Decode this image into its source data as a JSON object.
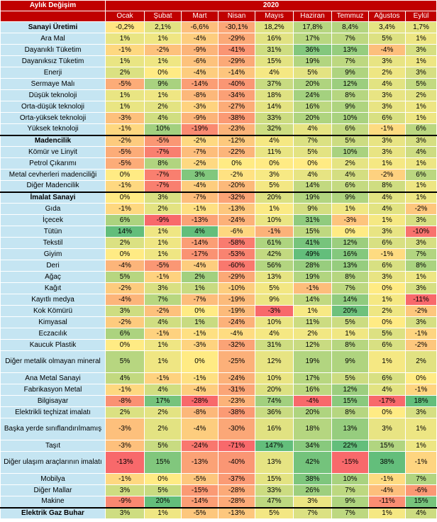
{
  "header": {
    "corner_label": "Aylık Değişim",
    "year": "2020",
    "months": [
      "Ocak",
      "Şubat",
      "Mart",
      "Nisan",
      "Mayıs",
      "Haziran",
      "Temmuz",
      "Ağustos",
      "Eylül"
    ]
  },
  "colors": {
    "header_bg": "#c00000",
    "header_text": "#ffffff",
    "label_bg": "#c5e5f2",
    "scale_red": "#f8696b",
    "scale_yellow": "#ffeb84",
    "scale_green": "#63be7b"
  },
  "rows": [
    {
      "label": "Sanayi Üretimi",
      "bold": true,
      "values": [
        "-0,2%",
        "2,1%",
        "-6,6%",
        "-30,1%",
        "18,2%",
        "17,8%",
        "8,4%",
        "3,4%",
        "1,7%"
      ]
    },
    {
      "label": "Ara Mal",
      "values": [
        "1%",
        "1%",
        "-4%",
        "-29%",
        "16%",
        "17%",
        "7%",
        "5%",
        "1%"
      ]
    },
    {
      "label": "Dayanıklı Tüketim",
      "values": [
        "-1%",
        "-2%",
        "-9%",
        "-41%",
        "31%",
        "36%",
        "13%",
        "-4%",
        "3%"
      ]
    },
    {
      "label": "Dayanıksız Tüketim",
      "values": [
        "1%",
        "1%",
        "-6%",
        "-29%",
        "15%",
        "19%",
        "7%",
        "3%",
        "1%"
      ]
    },
    {
      "label": "Enerji",
      "values": [
        "2%",
        "0%",
        "-4%",
        "-14%",
        "4%",
        "5%",
        "9%",
        "2%",
        "3%"
      ]
    },
    {
      "label": "Sermaye Malı",
      "values": [
        "-5%",
        "9%",
        "-14%",
        "-40%",
        "37%",
        "20%",
        "12%",
        "4%",
        "5%"
      ]
    },
    {
      "label": "Düşük teknoloji",
      "values": [
        "1%",
        "1%",
        "-8%",
        "-34%",
        "18%",
        "24%",
        "8%",
        "3%",
        "2%"
      ]
    },
    {
      "label": "Orta-düşük teknoloji",
      "values": [
        "1%",
        "2%",
        "-3%",
        "-27%",
        "14%",
        "16%",
        "9%",
        "3%",
        "1%"
      ]
    },
    {
      "label": "Orta-yüksek teknoloji",
      "values": [
        "-3%",
        "4%",
        "-9%",
        "-38%",
        "33%",
        "20%",
        "10%",
        "6%",
        "1%"
      ]
    },
    {
      "label": "Yüksek teknoloji",
      "values": [
        "-1%",
        "10%",
        "-19%",
        "-23%",
        "32%",
        "4%",
        "6%",
        "-1%",
        "6%"
      ]
    },
    {
      "label": "Madencilik",
      "bold": true,
      "section": true,
      "values": [
        "-2%",
        "-5%",
        "-2%",
        "-12%",
        "4%",
        "7%",
        "5%",
        "3%",
        "3%"
      ]
    },
    {
      "label": "Kömür ve Linyit",
      "values": [
        "-5%",
        "-7%",
        "-7%",
        "-22%",
        "11%",
        "5%",
        "10%",
        "3%",
        "4%"
      ]
    },
    {
      "label": "Petrol Çıkarımı",
      "values": [
        "-5%",
        "8%",
        "-2%",
        "0%",
        "0%",
        "0%",
        "2%",
        "1%",
        "1%"
      ]
    },
    {
      "label": "Metal cevherleri madenciliği",
      "values": [
        "0%",
        "-7%",
        "3%",
        "-2%",
        "3%",
        "4%",
        "4%",
        "-2%",
        "6%"
      ]
    },
    {
      "label": "Diğer Madencilik",
      "values": [
        "-1%",
        "-7%",
        "-4%",
        "-20%",
        "5%",
        "14%",
        "6%",
        "8%",
        "1%"
      ]
    },
    {
      "label": "İmalat Sanayi",
      "bold": true,
      "section": true,
      "values": [
        "0%",
        "3%",
        "-7%",
        "-32%",
        "20%",
        "19%",
        "9%",
        "4%",
        "1%"
      ]
    },
    {
      "label": "Gıda",
      "values": [
        "-1%",
        "2%",
        "-1%",
        "-13%",
        "1%",
        "9%",
        "1%",
        "4%",
        "-2%"
      ]
    },
    {
      "label": "İçecek",
      "values": [
        "6%",
        "-9%",
        "-13%",
        "-24%",
        "10%",
        "31%",
        "-3%",
        "1%",
        "3%"
      ]
    },
    {
      "label": "Tütün",
      "values": [
        "14%",
        "1%",
        "4%",
        "-6%",
        "-1%",
        "15%",
        "0%",
        "3%",
        "-10%"
      ]
    },
    {
      "label": "Tekstil",
      "values": [
        "2%",
        "1%",
        "-14%",
        "-58%",
        "61%",
        "41%",
        "12%",
        "6%",
        "3%"
      ]
    },
    {
      "label": "Giyim",
      "values": [
        "0%",
        "1%",
        "-17%",
        "-53%",
        "42%",
        "49%",
        "16%",
        "-1%",
        "7%"
      ]
    },
    {
      "label": "Deri",
      "values": [
        "-4%",
        "-5%",
        "-4%",
        "-60%",
        "56%",
        "28%",
        "13%",
        "6%",
        "8%"
      ]
    },
    {
      "label": "Ağaç",
      "values": [
        "5%",
        "-1%",
        "2%",
        "-29%",
        "13%",
        "19%",
        "8%",
        "3%",
        "1%"
      ]
    },
    {
      "label": "Kağıt",
      "values": [
        "-2%",
        "3%",
        "1%",
        "-10%",
        "5%",
        "-1%",
        "7%",
        "0%",
        "3%"
      ]
    },
    {
      "label": "Kayıtlı medya",
      "values": [
        "-4%",
        "7%",
        "-7%",
        "-19%",
        "9%",
        "14%",
        "14%",
        "1%",
        "-11%"
      ]
    },
    {
      "label": "Kok Kömürü",
      "values": [
        "3%",
        "-2%",
        "0%",
        "-19%",
        "-3%",
        "1%",
        "20%",
        "2%",
        "-2%"
      ]
    },
    {
      "label": "Kimyasal",
      "values": [
        "-2%",
        "4%",
        "1%",
        "-24%",
        "10%",
        "11%",
        "5%",
        "0%",
        "3%"
      ]
    },
    {
      "label": "Eczacılık",
      "values": [
        "6%",
        "-1%",
        "-1%",
        "-4%",
        "4%",
        "2%",
        "1%",
        "5%",
        "-1%"
      ]
    },
    {
      "label": "Kaucuk Plastik",
      "values": [
        "0%",
        "1%",
        "-3%",
        "-32%",
        "31%",
        "12%",
        "8%",
        "6%",
        "-2%"
      ]
    },
    {
      "label": "Diğer metalik olmayan mineral",
      "wrap": true,
      "values": [
        "5%",
        "1%",
        "0%",
        "-25%",
        "12%",
        "19%",
        "9%",
        "1%",
        "2%"
      ]
    },
    {
      "label": "Ana Metal Sanayi",
      "values": [
        "4%",
        "-1%",
        "-1%",
        "-24%",
        "10%",
        "17%",
        "5%",
        "6%",
        "0%"
      ]
    },
    {
      "label": "Fabrikasyon Metal",
      "values": [
        "-1%",
        "4%",
        "-4%",
        "-31%",
        "20%",
        "16%",
        "12%",
        "4%",
        "-1%"
      ]
    },
    {
      "label": "Bilgisayar",
      "values": [
        "-8%",
        "17%",
        "-28%",
        "-23%",
        "74%",
        "-4%",
        "15%",
        "-17%",
        "18%"
      ]
    },
    {
      "label": "Elektrikli teçhizat imalatı",
      "values": [
        "2%",
        "2%",
        "-8%",
        "-38%",
        "36%",
        "20%",
        "8%",
        "0%",
        "3%"
      ]
    },
    {
      "label": "Başka yerde sınıflandırılmamış",
      "wrap": true,
      "values": [
        "-3%",
        "2%",
        "-4%",
        "-30%",
        "16%",
        "18%",
        "13%",
        "3%",
        "1%"
      ]
    },
    {
      "label": "Taşıt",
      "values": [
        "-3%",
        "5%",
        "-24%",
        "-71%",
        "147%",
        "34%",
        "22%",
        "15%",
        "1%"
      ]
    },
    {
      "label": "Diğer ulaşım araçlarının imalatı",
      "wrap": true,
      "values": [
        "-13%",
        "15%",
        "-13%",
        "-40%",
        "13%",
        "42%",
        "-15%",
        "38%",
        "-1%"
      ]
    },
    {
      "label": "Mobilya",
      "values": [
        "-1%",
        "0%",
        "-5%",
        "-37%",
        "15%",
        "38%",
        "10%",
        "-1%",
        "7%"
      ]
    },
    {
      "label": "Diğer Mallar",
      "values": [
        "3%",
        "5%",
        "-15%",
        "-28%",
        "33%",
        "26%",
        "7%",
        "-4%",
        "-6%"
      ]
    },
    {
      "label": "Makine",
      "values": [
        "-9%",
        "20%",
        "-14%",
        "-28%",
        "47%",
        "3%",
        "9%",
        "-11%",
        "15%"
      ]
    },
    {
      "label": "Elektrik Gaz Buhar",
      "bold": true,
      "section": true,
      "values": [
        "3%",
        "1%",
        "-5%",
        "-13%",
        "5%",
        "7%",
        "7%",
        "1%",
        "4%"
      ]
    }
  ]
}
